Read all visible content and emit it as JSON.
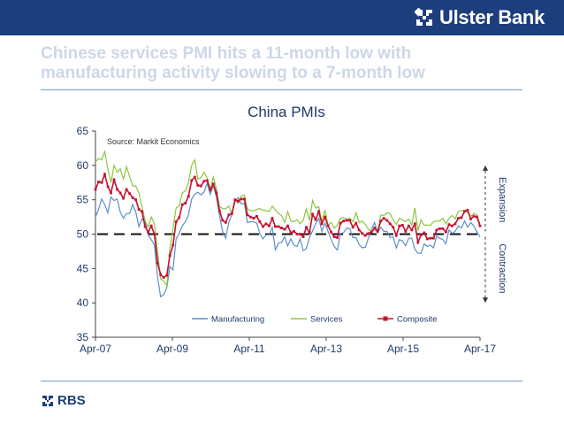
{
  "header": {
    "bank_name": "Ulster Bank",
    "color": "#1d3e7d"
  },
  "slide_title": {
    "line1": "Chinese services PMI hits a  11-month low with",
    "line2": "manufacturing activity slowing to a 7-month low",
    "color": "#cdd7e6"
  },
  "footer": {
    "logo_text": "RBS"
  },
  "chart_data": {
    "type": "line",
    "title": "China PMIs",
    "source_note": "Source: Markit Economics",
    "xlabel": "",
    "ylabel": "",
    "ylim": [
      35,
      65
    ],
    "yticks": [
      "35",
      "40",
      "45",
      "50",
      "55",
      "60",
      "65"
    ],
    "x_tick_labels": [
      "Apr-07",
      "Apr-09",
      "Apr-11",
      "Apr-13",
      "Apr-15",
      "Apr-17"
    ],
    "x_range": [
      "Apr-07",
      "Apr-17"
    ],
    "grid": false,
    "legend_position": "bottom",
    "reference_line": {
      "y": 50,
      "style": "dashed"
    },
    "annotations": {
      "expansion": "Expansion",
      "contraction": "Contraction"
    },
    "series": [
      {
        "name": "Manufacturing",
        "color": "#5b8fc7",
        "marker": "none",
        "start": "2007-04",
        "values": [
          52.5,
          53.6,
          55.1,
          54.3,
          53.1,
          55.4,
          54.9,
          55.1,
          53.2,
          52.3,
          53.0,
          53.0,
          54.3,
          53.2,
          51.1,
          52.2,
          51.8,
          49.9,
          49.2,
          48.4,
          43.8,
          40.9,
          41.2,
          42.2,
          45.3,
          44.8,
          49.3,
          50.1,
          51.2,
          51.8,
          52.8,
          55.1,
          55.8,
          56.1,
          55.7,
          56.1,
          57.4,
          55.8,
          57.0,
          55.4,
          52.7,
          50.4,
          49.4,
          51.7,
          52.9,
          54.7,
          55.3,
          54.4,
          54.5,
          51.7,
          51.8,
          51.8,
          51.6,
          50.1,
          49.3,
          49.9,
          49.9,
          51.0,
          47.7,
          48.7,
          48.8,
          49.6,
          48.3,
          49.3,
          48.4,
          48.2,
          49.3,
          47.6,
          47.9,
          49.5,
          50.5,
          51.5,
          52.3,
          50.4,
          51.6,
          50.4,
          49.2,
          48.2,
          47.7,
          50.1,
          50.2,
          50.9,
          50.8,
          49.5,
          49.5,
          48.5,
          48.0,
          48.1,
          49.4,
          50.7,
          51.7,
          50.2,
          51.0,
          50.4,
          50.4,
          49.5,
          49.6,
          48.0,
          49.2,
          49.0,
          48.3,
          49.4,
          49.4,
          47.8,
          47.2,
          47.2,
          48.6,
          48.2,
          48.4,
          48.0,
          49.7,
          49.4,
          49.2,
          48.6,
          50.6,
          50.1,
          50.4,
          51.2,
          50.9,
          51.9,
          51.0,
          51.7,
          51.2,
          50.3,
          49.6
        ]
      },
      {
        "name": "Services",
        "color": "#8dc63f",
        "marker": "none",
        "start": "2007-04",
        "values": [
          60.5,
          61.0,
          60.8,
          62.0,
          59.5,
          57.5,
          60.0,
          59.0,
          59.5,
          58.0,
          59.8,
          58.4,
          57.0,
          57.0,
          56.0,
          54.0,
          52.0,
          51.0,
          52.5,
          51.5,
          47.5,
          43.5,
          43.2,
          42.5,
          48.0,
          50.8,
          53.8,
          54.1,
          56.0,
          56.3,
          57.5,
          60.0,
          60.8,
          58.0,
          58.2,
          59.0,
          58.2,
          56.6,
          58.3,
          56.6,
          54.0,
          53.7,
          53.7,
          54.1,
          52.9,
          55.0,
          54.5,
          55.5,
          55.7,
          53.7,
          53.4,
          53.4,
          53.6,
          53.7,
          53.5,
          53.4,
          53.3,
          54.1,
          53.5,
          53.0,
          52.7,
          51.7,
          53.3,
          51.9,
          51.8,
          52.1,
          51.5,
          52.0,
          53.7,
          52.0,
          54.9,
          53.8,
          54.0,
          51.9,
          53.5,
          51.3,
          51.7,
          50.9,
          51.3,
          52.3,
          52.4,
          52.2,
          52.3,
          51.8,
          53.1,
          51.7,
          51.9,
          51.4,
          50.7,
          50.4,
          50.6,
          50.3,
          52.8,
          52.7,
          53.1,
          53.0,
          52.0,
          51.4,
          52.3,
          52.1,
          51.8,
          52.2,
          51.3,
          53.8,
          50.5,
          52.1,
          51.3,
          51.3,
          51.3,
          51.8,
          51.9,
          51.9,
          52.3,
          51.5,
          52.3,
          52.7,
          52.2,
          53.3,
          53.4,
          53.5,
          53.1,
          52.6,
          53.0,
          52.8,
          51.5
        ]
      },
      {
        "name": "Composite",
        "color": "#c8102e",
        "marker": "square",
        "start": "2007-04",
        "values": [
          56.5,
          57.6,
          57.5,
          58.7,
          56.9,
          56.0,
          57.9,
          56.5,
          56.0,
          55.2,
          56.5,
          55.9,
          55.3,
          55.0,
          53.6,
          53.3,
          51.1,
          50.3,
          51.2,
          50.0,
          45.8,
          44.1,
          43.7,
          44.0,
          46.9,
          48.4,
          51.8,
          52.4,
          54.3,
          54.5,
          55.5,
          57.8,
          58.3,
          57.1,
          57.0,
          57.7,
          57.8,
          56.4,
          57.3,
          56.0,
          53.4,
          52.0,
          51.7,
          52.8,
          53.0,
          55.0,
          54.8,
          55.1,
          55.1,
          52.8,
          52.5,
          52.3,
          52.6,
          51.8,
          51.1,
          51.5,
          51.2,
          52.3,
          51.1,
          51.1,
          50.9,
          50.7,
          51.2,
          50.2,
          50.4,
          50.0,
          50.0,
          49.6,
          51.0,
          50.2,
          52.9,
          52.1,
          53.3,
          51.5,
          52.5,
          51.2,
          50.3,
          49.6,
          49.5,
          51.6,
          51.9,
          52.0,
          52.0,
          51.0,
          51.6,
          50.6,
          50.1,
          49.8,
          50.1,
          50.3,
          50.9,
          50.4,
          51.9,
          52.3,
          52.0,
          51.5,
          51.0,
          49.8,
          51.2,
          51.3,
          50.4,
          51.2,
          50.6,
          51.5,
          48.8,
          49.9,
          50.2,
          49.3,
          49.4,
          49.4,
          50.6,
          50.8,
          50.8,
          50.3,
          51.4,
          51.2,
          51.5,
          52.3,
          52.4,
          53.3,
          53.5,
          52.2,
          52.6,
          52.5,
          51.2
        ]
      }
    ]
  }
}
